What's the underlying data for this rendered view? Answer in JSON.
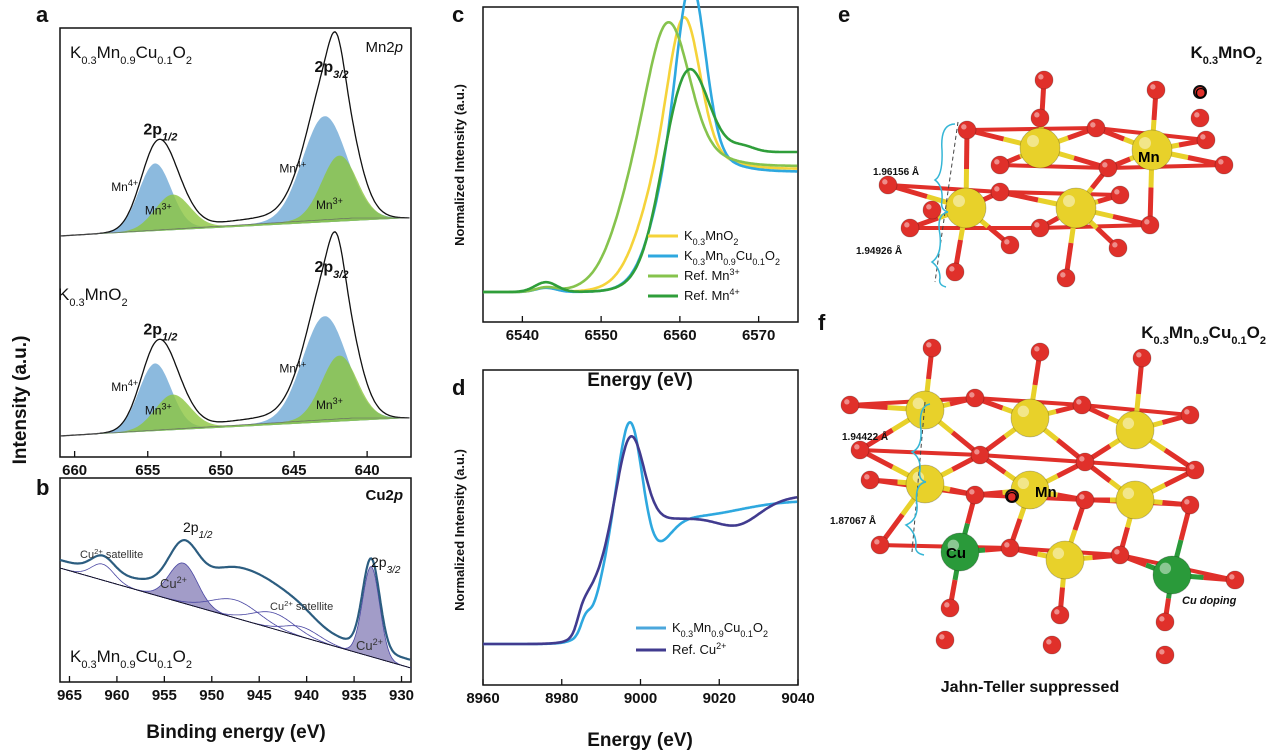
{
  "panels": {
    "a": {
      "label": "a",
      "top_sample": "K0.3Mn0.9Cu0.1O2",
      "bottom_sample": "K0.3MnO2",
      "core_level": "Mn2p"
    },
    "b": {
      "label": "b",
      "core_level": "Cu2p",
      "sample": "K0.3Mn0.9Cu0.1O2",
      "xlabel": "Binding energy (eV)"
    },
    "c": {
      "label": "c",
      "xlabel": "Energy (eV)",
      "ylabel": "Normalized Intensity (a.u.)"
    },
    "d": {
      "label": "d",
      "xlabel": "Energy (eV)",
      "ylabel": "Normalized Intensity (a.u.)"
    },
    "e": {
      "label": "e",
      "title": "K0.3MnO2",
      "bond1": "1.96156 Å",
      "bond2": "1.94926 Å",
      "atom_mn": "Mn",
      "atom_o": "O"
    },
    "f": {
      "label": "f",
      "title": "K0.3Mn0.9Cu0.1O2",
      "bond1": "1.94422 Å",
      "bond2": "1.87067 Å",
      "atom_mn": "Mn",
      "atom_o": "O",
      "atom_cu": "Cu",
      "doping": "Cu doping",
      "caption": "Jahn-Teller suppressed"
    }
  },
  "shared_ylabel": "Intensity (a.u.)",
  "colors": {
    "mn4": "#6fa9d6",
    "mn3": "#8cc63f",
    "cu": "#7b72b0",
    "k03mno2": "#f5d33a",
    "kmncu": "#2ea8df",
    "refmn3": "#86c34d",
    "refmn4": "#2f9e3a",
    "refcu": "#413b8f",
    "o_atom": "#e0302a",
    "mn_atom": "#e8d12a",
    "cu_atom": "#2a9a3a"
  },
  "chart_data": [
    {
      "type": "area",
      "panel": "a",
      "xlabel": "",
      "ylabel": "Intensity (a.u.)",
      "xlim": [
        661,
        637
      ],
      "xticks": [
        660,
        655,
        650,
        645,
        640
      ],
      "spectra": [
        {
          "sample": "K0.3Mn0.9Cu0.1O2",
          "peaks": [
            {
              "label": "2p1/2",
              "x": 654.2,
              "components": [
                {
                  "name": "Mn4+",
                  "center": 654.5
                },
                {
                  "name": "Mn3+",
                  "center": 653.3
                }
              ]
            },
            {
              "label": "2p3/2",
              "x": 642.3,
              "components": [
                {
                  "name": "Mn4+",
                  "center": 642.9
                },
                {
                  "name": "Mn3+",
                  "center": 641.9
                }
              ]
            }
          ]
        },
        {
          "sample": "K0.3MnO2",
          "peaks": [
            {
              "label": "2p1/2",
              "x": 654.2,
              "components": [
                {
                  "name": "Mn4+",
                  "center": 654.5
                },
                {
                  "name": "Mn3+",
                  "center": 653.3
                }
              ]
            },
            {
              "label": "2p3/2",
              "x": 642.3,
              "components": [
                {
                  "name": "Mn4+",
                  "center": 642.9
                },
                {
                  "name": "Mn3+",
                  "center": 641.9
                }
              ]
            }
          ]
        }
      ],
      "peak_labels": {
        "p12": "2p",
        "p12_sub": "1/2",
        "p32": "2p",
        "p32_sub": "3/2",
        "mn4": "Mn",
        "mn4_sup": "4+",
        "mn3": "Mn",
        "mn3_sup": "3+"
      }
    },
    {
      "type": "area",
      "panel": "b",
      "xlabel": "Binding energy (eV)",
      "ylabel": "Intensity (a.u.)",
      "xlim": [
        966,
        929
      ],
      "xticks": [
        965,
        960,
        955,
        950,
        945,
        940,
        935,
        930
      ],
      "peaks": [
        {
          "label": "Cu2+ satellite",
          "center": 961.5
        },
        {
          "label": "Cu2+",
          "center": 953.0,
          "group": "2p1/2"
        },
        {
          "label": "Cu2+ satellite",
          "center": 943.5
        },
        {
          "label": "Cu2+",
          "center": 933.2,
          "group": "2p3/2"
        }
      ],
      "peak_labels": {
        "cu": "Cu",
        "cu_sup": "2+",
        "sat": " satellite",
        "p12": "2p",
        "p12_sub": "1/2",
        "p32": "2p",
        "p32_sub": "3/2"
      }
    },
    {
      "type": "line",
      "panel": "c",
      "xlabel": "Energy (eV)",
      "ylabel": "Normalized Intensity (a.u.)",
      "xlim": [
        6535,
        6575
      ],
      "xticks": [
        6540,
        6550,
        6560,
        6570
      ],
      "series": [
        {
          "name": "K0.3MnO2",
          "color": "#f5d33a"
        },
        {
          "name": "K0.3Mn0.9Cu0.1O2",
          "color": "#2ea8df"
        },
        {
          "name": "Ref. Mn3+",
          "color": "#86c34d"
        },
        {
          "name": "Ref. Mn4+",
          "color": "#2f9e3a"
        }
      ],
      "legend": "bottom-right"
    },
    {
      "type": "line",
      "panel": "d",
      "xlabel": "Energy (eV)",
      "ylabel": "Normalized Intensity (a.u.)",
      "xlim": [
        8960,
        9040
      ],
      "xticks": [
        8960,
        8980,
        9000,
        9020,
        9040
      ],
      "series": [
        {
          "name": "K0.3Mn0.9Cu0.1O2",
          "color": "#4ba7dc"
        },
        {
          "name": "Ref. Cu2+",
          "color": "#413b8f"
        }
      ],
      "legend": "bottom-right"
    }
  ]
}
